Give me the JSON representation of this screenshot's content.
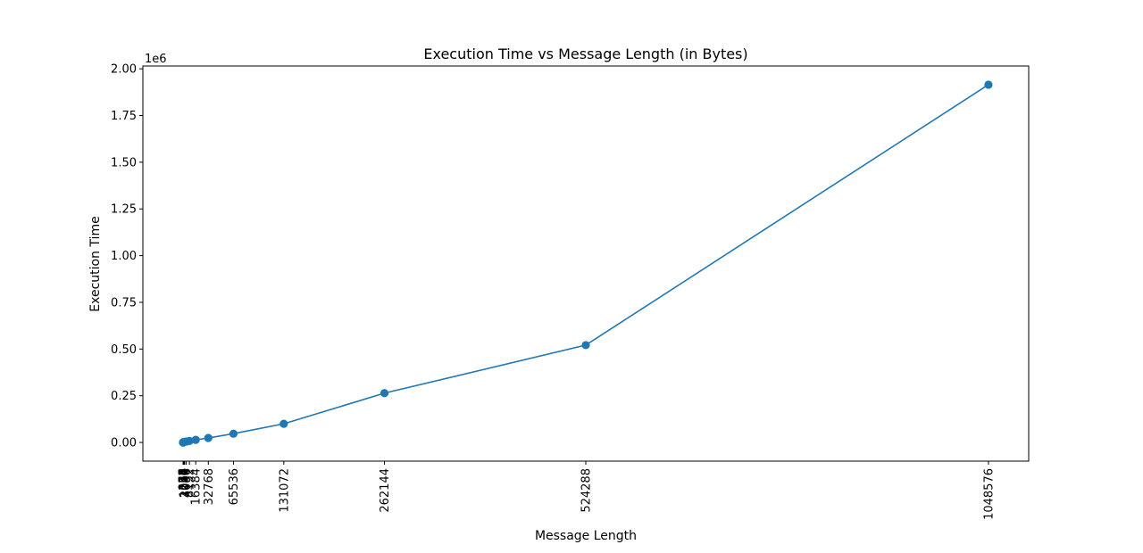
{
  "chart_data": {
    "type": "line",
    "title": "Execution Time vs Message Length (in Bytes)",
    "xlabel": "Message Length",
    "ylabel": "Execution Time",
    "y_offset_label": "1e6",
    "x": [
      1,
      2,
      4,
      8,
      16,
      32,
      64,
      128,
      256,
      512,
      1024,
      2048,
      4096,
      8192,
      16384,
      32768,
      65536,
      131072,
      262144,
      524288,
      1048576
    ],
    "x_tick_labels": [
      "1",
      "2",
      "4",
      "8",
      "16",
      "32",
      "64",
      "128",
      "256",
      "512",
      "1024",
      "2048",
      "4096",
      "8192",
      "16384",
      "32768",
      "65536",
      "131072",
      "262144",
      "524288",
      "1048576"
    ],
    "series": [
      {
        "values": [
          100,
          120,
          150,
          200,
          300,
          400,
          600,
          900,
          1200,
          1800,
          2500,
          3500,
          5000,
          8000,
          14000,
          24000,
          47000,
          100000,
          264000,
          521000,
          1915000
        ],
        "color": "#1f77b4"
      }
    ],
    "xlim": [
      -52428,
      1100988
    ],
    "ylim": [
      -100000,
      2015000
    ],
    "y_ticks": [
      0,
      250000,
      500000,
      750000,
      1000000,
      1250000,
      1500000,
      1750000,
      2000000
    ],
    "y_tick_labels": [
      "0.00",
      "0.25",
      "0.50",
      "0.75",
      "1.00",
      "1.25",
      "1.50",
      "1.75",
      "2.00"
    ],
    "grid": false,
    "legend": false,
    "marker": "circle"
  }
}
